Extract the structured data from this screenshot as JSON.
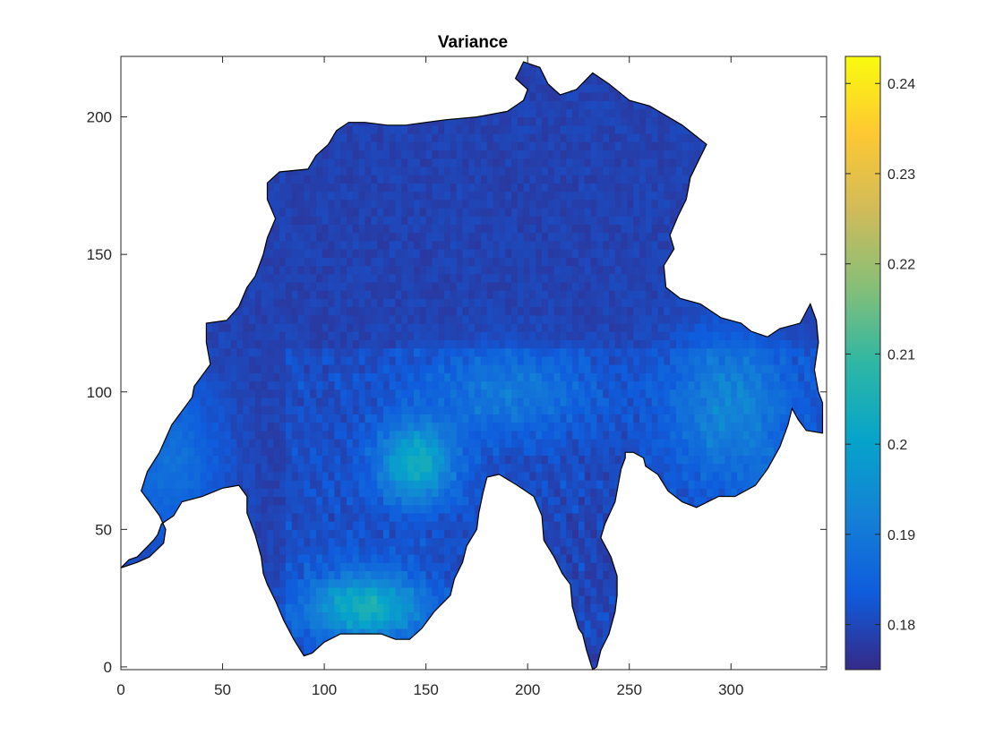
{
  "chart_data": {
    "type": "heatmap",
    "title": "Variance",
    "xlabel": "",
    "ylabel": "",
    "xlim": [
      0,
      347
    ],
    "ylim": [
      -1,
      222
    ],
    "x_ticks": [
      0,
      50,
      100,
      150,
      200,
      250,
      300
    ],
    "y_ticks": [
      0,
      50,
      100,
      150,
      200
    ],
    "grid": false,
    "colormap": "parula",
    "colorbar": {
      "range": [
        0.175,
        0.243
      ],
      "ticks": [
        0.18,
        0.19,
        0.2,
        0.21,
        0.22,
        0.23,
        0.24
      ],
      "tick_labels": [
        "0.18",
        "0.19",
        "0.2",
        "0.21",
        "0.22",
        "0.23",
        "0.24"
      ]
    },
    "region_outline": [
      [
        0,
        36
      ],
      [
        8,
        38
      ],
      [
        14,
        40
      ],
      [
        21,
        45
      ],
      [
        22,
        50
      ],
      [
        19,
        55
      ],
      [
        10,
        64
      ],
      [
        13,
        71
      ],
      [
        19,
        78
      ],
      [
        25,
        88
      ],
      [
        35,
        98
      ],
      [
        36,
        102
      ],
      [
        44,
        110
      ],
      [
        42,
        118
      ],
      [
        42,
        125
      ],
      [
        52,
        126
      ],
      [
        58,
        131
      ],
      [
        62,
        138
      ],
      [
        66,
        142
      ],
      [
        70,
        150
      ],
      [
        72,
        156
      ],
      [
        76,
        163
      ],
      [
        72,
        170
      ],
      [
        72,
        176
      ],
      [
        78,
        180
      ],
      [
        92,
        181
      ],
      [
        96,
        186
      ],
      [
        102,
        190
      ],
      [
        106,
        195
      ],
      [
        112,
        198
      ],
      [
        120,
        198
      ],
      [
        131,
        197
      ],
      [
        140,
        197
      ],
      [
        150,
        198
      ],
      [
        160,
        199
      ],
      [
        175,
        200
      ],
      [
        190,
        202
      ],
      [
        198,
        206
      ],
      [
        200,
        210
      ],
      [
        194,
        214
      ],
      [
        198,
        220
      ],
      [
        206,
        218
      ],
      [
        210,
        212
      ],
      [
        216,
        208
      ],
      [
        224,
        210
      ],
      [
        232,
        216
      ],
      [
        240,
        212
      ],
      [
        250,
        206
      ],
      [
        260,
        204
      ],
      [
        276,
        197
      ],
      [
        288,
        190
      ],
      [
        284,
        184
      ],
      [
        280,
        178
      ],
      [
        278,
        170
      ],
      [
        274,
        164
      ],
      [
        270,
        157
      ],
      [
        272,
        152
      ],
      [
        267,
        146
      ],
      [
        268,
        138
      ],
      [
        275,
        134
      ],
      [
        285,
        132
      ],
      [
        295,
        127
      ],
      [
        305,
        125
      ],
      [
        310,
        122
      ],
      [
        318,
        120
      ],
      [
        324,
        123
      ],
      [
        334,
        125
      ],
      [
        339,
        132
      ],
      [
        342,
        126
      ],
      [
        343,
        118
      ],
      [
        341,
        108
      ],
      [
        343,
        100
      ],
      [
        345,
        96
      ],
      [
        345,
        85
      ],
      [
        337,
        86
      ],
      [
        333,
        90
      ],
      [
        330,
        94
      ],
      [
        328,
        88
      ],
      [
        324,
        80
      ],
      [
        318,
        72
      ],
      [
        312,
        66
      ],
      [
        302,
        62
      ],
      [
        294,
        62
      ],
      [
        283,
        58
      ],
      [
        276,
        60
      ],
      [
        269,
        64
      ],
      [
        264,
        70
      ],
      [
        258,
        73
      ],
      [
        257,
        76
      ],
      [
        252,
        78
      ],
      [
        248,
        78
      ],
      [
        248,
        76
      ],
      [
        246,
        72
      ],
      [
        243,
        60
      ],
      [
        238,
        52
      ],
      [
        236,
        47
      ],
      [
        241,
        40
      ],
      [
        244,
        33
      ],
      [
        244,
        26
      ],
      [
        243,
        20
      ],
      [
        240,
        12
      ],
      [
        236,
        6
      ],
      [
        234,
        0
      ],
      [
        232,
        -1
      ],
      [
        229,
        6
      ],
      [
        227,
        12
      ],
      [
        225,
        14
      ],
      [
        222,
        22
      ],
      [
        221,
        30
      ],
      [
        217,
        34
      ],
      [
        213,
        40
      ],
      [
        208,
        46
      ],
      [
        207,
        55
      ],
      [
        203,
        62
      ],
      [
        195,
        66
      ],
      [
        186,
        70
      ],
      [
        180,
        69
      ],
      [
        178,
        63
      ],
      [
        176,
        56
      ],
      [
        175,
        50
      ],
      [
        170,
        44
      ],
      [
        168,
        38
      ],
      [
        164,
        32
      ],
      [
        162,
        26
      ],
      [
        154,
        20
      ],
      [
        148,
        14
      ],
      [
        142,
        10
      ],
      [
        135,
        10
      ],
      [
        128,
        12
      ],
      [
        118,
        12
      ],
      [
        108,
        12
      ],
      [
        100,
        9
      ],
      [
        94,
        5
      ],
      [
        90,
        4
      ],
      [
        85,
        10
      ],
      [
        80,
        17
      ],
      [
        76,
        24
      ],
      [
        72,
        30
      ],
      [
        70,
        34
      ],
      [
        69,
        40
      ],
      [
        66,
        48
      ],
      [
        62,
        56
      ],
      [
        62,
        62
      ],
      [
        58,
        66
      ],
      [
        50,
        65
      ],
      [
        40,
        62
      ],
      [
        30,
        60
      ],
      [
        26,
        55
      ],
      [
        20,
        52
      ],
      [
        18,
        48
      ],
      [
        16,
        46
      ],
      [
        12,
        43
      ],
      [
        8,
        40
      ],
      [
        4,
        39
      ],
      [
        0,
        36
      ]
    ],
    "field_model": {
      "baseline": 0.179,
      "components": [
        {
          "x": 145,
          "y": 74,
          "sx": 18,
          "sy": 14,
          "amp": 0.023
        },
        {
          "x": 120,
          "y": 22,
          "sx": 28,
          "sy": 12,
          "amp": 0.024
        },
        {
          "x": 190,
          "y": 100,
          "sx": 40,
          "sy": 16,
          "amp": 0.009
        },
        {
          "x": 300,
          "y": 95,
          "sx": 30,
          "sy": 28,
          "amp": 0.012
        },
        {
          "x": 320,
          "y": 60,
          "sx": 10,
          "sy": 8,
          "amp": 0.02
        },
        {
          "x": 25,
          "y": 75,
          "sx": 25,
          "sy": 30,
          "amp": 0.009
        },
        {
          "x": 230,
          "y": 40,
          "sx": 25,
          "sy": 30,
          "amp": -0.002
        }
      ],
      "cell_size": 3
    }
  }
}
